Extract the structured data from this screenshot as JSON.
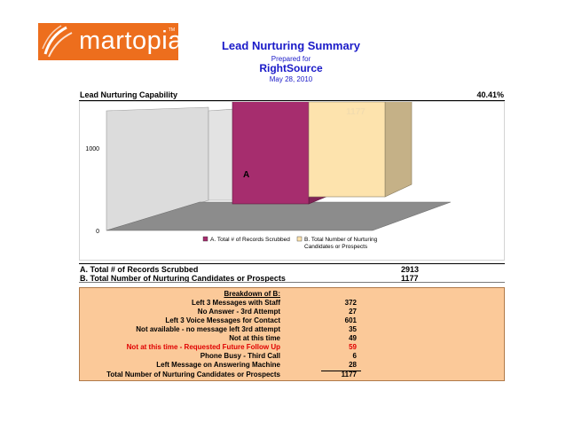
{
  "logo": {
    "brand": "martopia",
    "tm": "TM"
  },
  "header": {
    "title": "Lead Nurturing Summary",
    "prepared_for": "Prepared for",
    "client": "RightSource",
    "date": "May 28, 2010"
  },
  "capability": {
    "label": "Lead Nurturing Capability",
    "value": "40.41%"
  },
  "colors": {
    "bar_a": "#a62d6e",
    "bar_b": "#fde3ad",
    "accent_blue": "#1a1ac8",
    "breakdown_bg": "#fbc999",
    "highlight_red": "#e00000"
  },
  "chart_data": {
    "type": "bar",
    "categories": [
      "A",
      "B"
    ],
    "values": [
      2913,
      1177
    ],
    "data_labels": [
      "2913",
      "1177"
    ],
    "category_labels": [
      "A",
      ""
    ],
    "ylim": [
      0,
      3000
    ],
    "yticks": [
      "0",
      "1000",
      "2000",
      "3000"
    ],
    "grid": false,
    "legend": [
      {
        "label": "A.  Total # of Records Scrubbed",
        "color": "#a62d6e"
      },
      {
        "label": "B.  Total Number of Nurturing Candidates or Prospects",
        "color": "#fde3ad"
      }
    ],
    "legend_position": "bottom"
  },
  "summary": [
    {
      "label": "A.  Total # of Records Scrubbed",
      "value": "2913"
    },
    {
      "label": "B.  Total Number of Nurturing Candidates or Prospects",
      "value": "1177"
    }
  ],
  "breakdown": {
    "title": "Breakdown of B:",
    "rows": [
      {
        "label": "Left 3 Messages with Staff",
        "value": "372"
      },
      {
        "label": "No Answer - 3rd Attempt",
        "value": "27"
      },
      {
        "label": "Left 3 Voice Messages for Contact",
        "value": "601"
      },
      {
        "label": "Not available - no message left 3rd attempt",
        "value": "35"
      },
      {
        "label": "Not at this time",
        "value": "49"
      },
      {
        "label": "Not at this time - Requested Future Follow Up",
        "value": "59",
        "highlight": true
      },
      {
        "label": "Phone Busy - Third Call",
        "value": "6"
      },
      {
        "label": "Left Message on Answering Machine",
        "value": "28"
      }
    ],
    "total": {
      "label": "Total Number of Nurturing Candidates or Prospects",
      "value": "1177"
    }
  }
}
